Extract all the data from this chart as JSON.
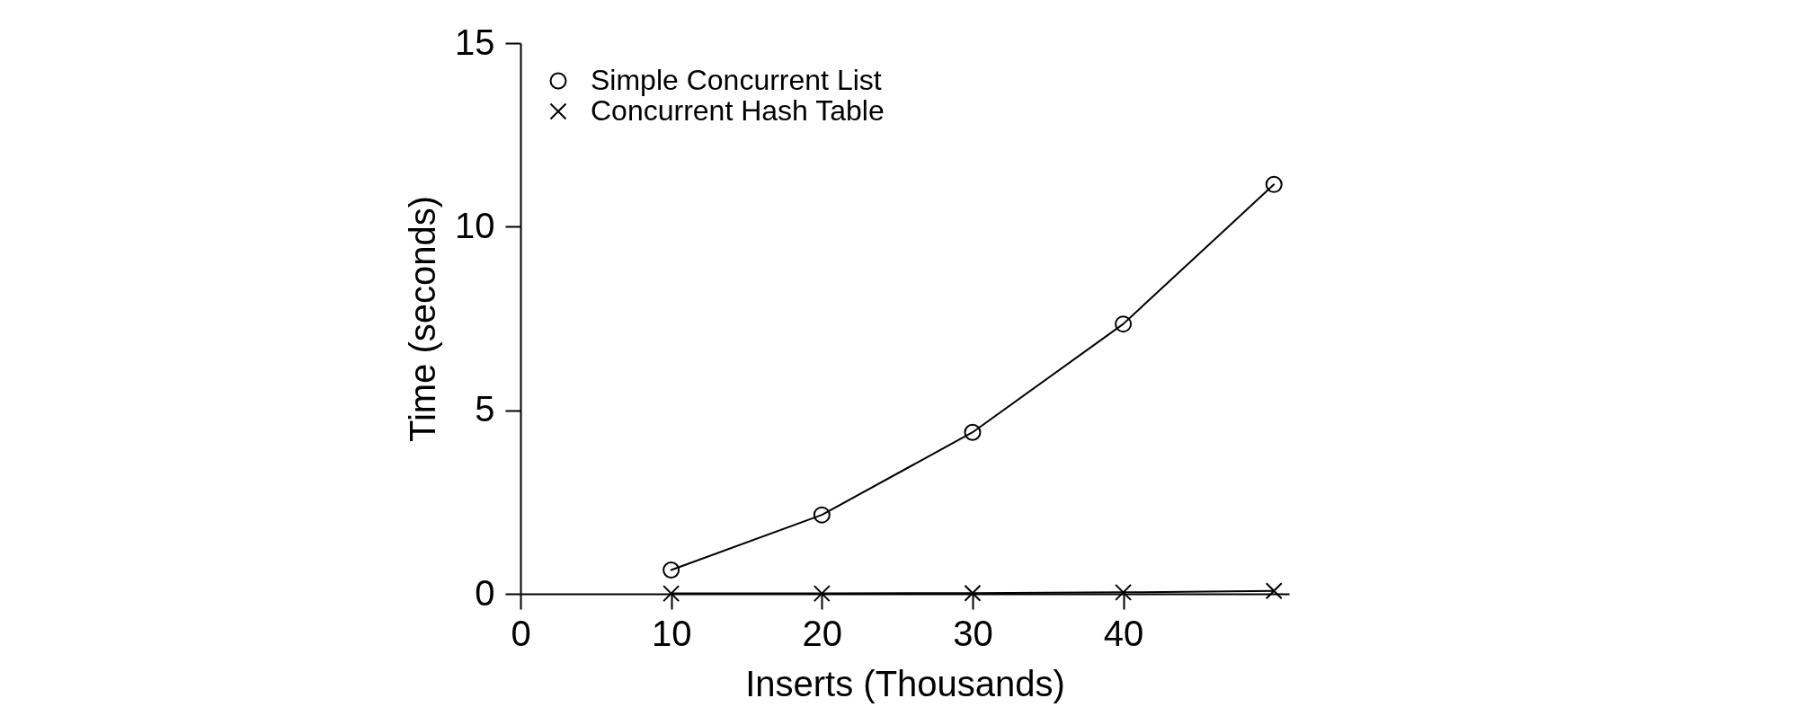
{
  "chart_data": {
    "type": "line",
    "xlabel": "Inserts (Thousands)",
    "ylabel": "Time (seconds)",
    "x": [
      10,
      20,
      30,
      40,
      50
    ],
    "series": [
      {
        "name": "Simple Concurrent List",
        "color": "#000000",
        "marker": "circle",
        "values": [
          0.65,
          2.15,
          4.4,
          7.35,
          11.15
        ]
      },
      {
        "name": "Concurrent Hash Table",
        "color": "#000000",
        "marker": "cross",
        "values": [
          0.01,
          0.01,
          0.02,
          0.04,
          0.08
        ]
      }
    ],
    "xlim": [
      0,
      51
    ],
    "ylim": [
      0,
      15
    ],
    "xticks": [
      0,
      10,
      20,
      30,
      40
    ],
    "yticks": [
      0,
      5,
      10,
      15
    ],
    "legend": "top left",
    "line_style": "solid"
  }
}
